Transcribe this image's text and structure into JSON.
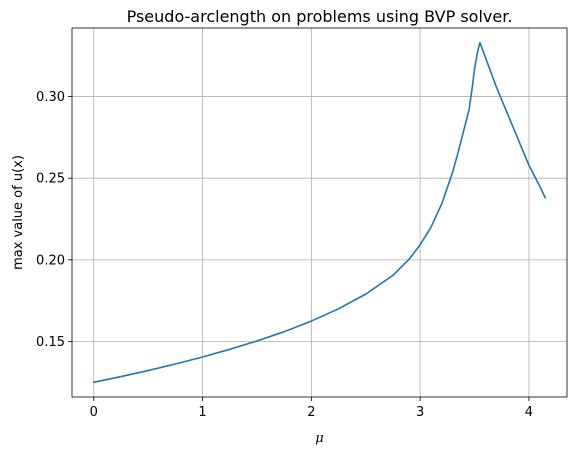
{
  "chart_data": {
    "type": "line",
    "title": "Pseudo-arclength on problems using BVP solver.",
    "xlabel": "μ",
    "ylabel": "max value of u(x)",
    "xlim": [
      -0.2,
      4.35
    ],
    "ylim": [
      0.116,
      0.342
    ],
    "xticks": [
      0,
      1,
      2,
      3,
      4
    ],
    "xtick_labels": [
      "0",
      "1",
      "2",
      "3",
      "4"
    ],
    "yticks": [
      0.15,
      0.2,
      0.25,
      0.3
    ],
    "ytick_labels": [
      "0.15",
      "0.20",
      "0.25",
      "0.30"
    ],
    "grid": true,
    "series": [
      {
        "color": "#1f77b4",
        "x": [
          0.0,
          0.25,
          0.5,
          0.75,
          1.0,
          1.25,
          1.5,
          1.75,
          2.0,
          2.25,
          2.5,
          2.75,
          2.9,
          3.0,
          3.1,
          3.2,
          3.3,
          3.35,
          3.4,
          3.45,
          3.48,
          3.5,
          3.53,
          3.55,
          3.6,
          3.7,
          3.8,
          3.9,
          4.0,
          4.1,
          4.15
        ],
        "y": [
          0.125,
          0.1285,
          0.1322,
          0.1362,
          0.1405,
          0.1452,
          0.1503,
          0.156,
          0.1625,
          0.17,
          0.179,
          0.1905,
          0.2005,
          0.2092,
          0.22,
          0.2345,
          0.254,
          0.266,
          0.279,
          0.292,
          0.306,
          0.317,
          0.328,
          0.333,
          0.324,
          0.306,
          0.29,
          0.274,
          0.258,
          0.245,
          0.238
        ]
      }
    ]
  }
}
